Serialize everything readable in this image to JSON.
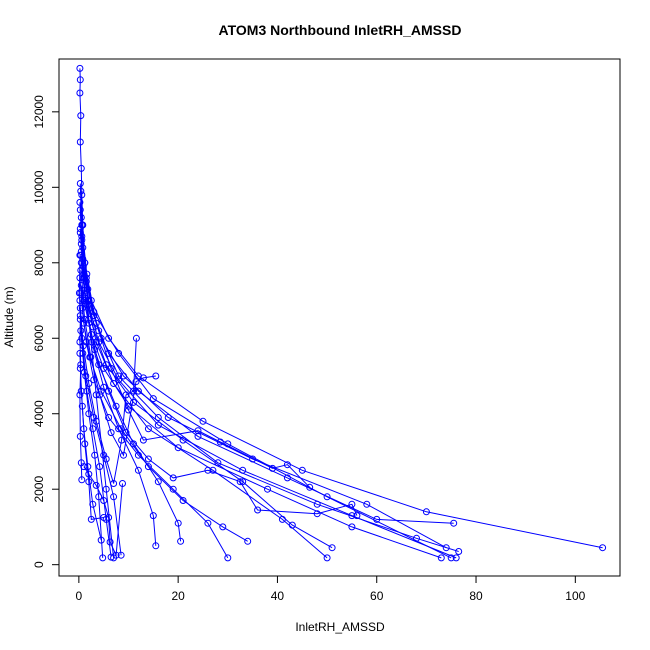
{
  "chart_data": {
    "type": "line",
    "title": "ATOM3 Northbound InletRH_AMSSD",
    "xlabel": "InletRH_AMSSD",
    "ylabel": "Altitude (m)",
    "xlim": [
      -4,
      109
    ],
    "ylim": [
      -300,
      13400
    ],
    "xticks": [
      0,
      20,
      40,
      60,
      80,
      100
    ],
    "yticks": [
      0,
      2000,
      4000,
      6000,
      8000,
      10000,
      12000
    ],
    "grid": false,
    "legend": "none",
    "color": "#0000ff",
    "marker": "open-circle",
    "series": [
      {
        "x": [
          0.2,
          0.3,
          0.2,
          0.4,
          0.3,
          0.5,
          0.6,
          0.8,
          1.2,
          2.0,
          3.5,
          5.5,
          7.0
        ],
        "y": [
          13150,
          12850,
          12500,
          11900,
          11200,
          10500,
          9800,
          9000,
          8000,
          6500,
          4500,
          2000,
          180
        ]
      },
      {
        "x": [
          0.3,
          0.5,
          0.8,
          1.5,
          3.0,
          8.0,
          15.0,
          30.0,
          50.0,
          75.0
        ],
        "y": [
          10100,
          9200,
          8400,
          7600,
          6700,
          5600,
          4400,
          3200,
          1800,
          180
        ]
      },
      {
        "x": [
          0.4,
          0.7,
          1.2,
          2.5,
          6.0,
          12.0,
          25.0,
          45.0,
          70.0,
          105.5
        ],
        "y": [
          9900,
          9000,
          8000,
          7000,
          6000,
          5000,
          3800,
          2500,
          1400,
          450
        ]
      },
      {
        "x": [
          0.2,
          0.6,
          1.0,
          2.0,
          4.0,
          8.0,
          16.0,
          33.0,
          55.0,
          76.0
        ],
        "y": [
          9600,
          8600,
          7700,
          6900,
          5900,
          4900,
          3700,
          2500,
          1300,
          180
        ]
      },
      {
        "x": [
          0.3,
          0.9,
          2.0,
          4.5,
          9.0,
          18.0,
          35.0,
          58.0,
          74.0
        ],
        "y": [
          8800,
          7900,
          7000,
          6000,
          5000,
          3900,
          2800,
          1600,
          450
        ]
      },
      {
        "x": [
          0.5,
          1.5,
          3.0,
          6.0,
          12.0,
          24.0,
          42.0,
          60.0,
          75.5
        ],
        "y": [
          8300,
          7500,
          6600,
          5600,
          4600,
          3400,
          2300,
          1200,
          1100
        ]
      },
      {
        "x": [
          0.4,
          1.0,
          2.5,
          5.0,
          10.0,
          20.0,
          38.0,
          55.0,
          73.0
        ],
        "y": [
          7800,
          7000,
          6100,
          5200,
          4200,
          3100,
          2000,
          1000,
          180
        ]
      },
      {
        "x": [
          0.6,
          1.8,
          4.0,
          8.0,
          16.0,
          28.0,
          48.0,
          68.0,
          76.5
        ],
        "y": [
          8700,
          7300,
          6200,
          5000,
          3900,
          2700,
          1600,
          700,
          350
        ]
      },
      {
        "x": [
          0.3,
          0.8,
          1.8,
          3.5,
          7.0,
          14.0,
          27.0,
          41.0,
          50.0
        ],
        "y": [
          9400,
          8100,
          7000,
          5900,
          4800,
          3600,
          2500,
          1200,
          180
        ]
      },
      {
        "x": [
          0.5,
          1.2,
          2.8,
          5.5,
          11.0,
          21.0,
          33.0,
          43.0,
          51.0
        ],
        "y": [
          8000,
          7200,
          6300,
          5300,
          4300,
          3300,
          2200,
          1050,
          450
        ]
      },
      {
        "x": [
          0.2,
          0.7,
          1.5,
          3.0,
          6.0,
          12.0,
          19.0,
          26.0,
          30.0
        ],
        "y": [
          7600,
          6800,
          5900,
          4900,
          3900,
          2900,
          2000,
          1100,
          180
        ]
      },
      {
        "x": [
          0.4,
          1.0,
          2.2,
          4.5,
          8.5,
          14.0,
          21.0,
          29.0,
          34.0
        ],
        "y": [
          7200,
          6400,
          5500,
          4600,
          3600,
          2600,
          1700,
          1000,
          620
        ]
      },
      {
        "x": [
          0.3,
          0.9,
          2.0,
          4.0,
          7.5,
          11.0,
          16.0,
          20.0,
          20.5
        ],
        "y": [
          8900,
          7600,
          6400,
          5300,
          4200,
          3200,
          2200,
          1100,
          620
        ]
      },
      {
        "x": [
          0.5,
          1.3,
          2.6,
          5.0,
          8.0,
          12.0,
          15.0,
          15.5
        ],
        "y": [
          8500,
          7100,
          5900,
          4700,
          3600,
          2500,
          1300,
          500
        ]
      },
      {
        "x": [
          0.2,
          0.6,
          1.4,
          3.0,
          5.0,
          7.0,
          8.5
        ],
        "y": [
          7000,
          6000,
          5000,
          3900,
          2900,
          1800,
          250
        ]
      },
      {
        "x": [
          0.3,
          0.8,
          1.6,
          2.8,
          4.2,
          5.5,
          6.5
        ],
        "y": [
          6600,
          5600,
          4600,
          3600,
          2600,
          1200,
          200
        ]
      },
      {
        "x": [
          0.4,
          1.1,
          2.0,
          3.2,
          4.0,
          4.8
        ],
        "y": [
          6200,
          5100,
          4000,
          2900,
          1800,
          180
        ]
      },
      {
        "x": [
          0.2,
          0.5,
          1.0,
          1.8,
          2.8,
          4.5
        ],
        "y": [
          5600,
          4600,
          3600,
          2600,
          1600,
          650
        ]
      },
      {
        "x": [
          0.3,
          0.7,
          1.2,
          2.0,
          2.5,
          5.0
        ],
        "y": [
          5200,
          4200,
          3200,
          2200,
          1200,
          1250
        ]
      },
      {
        "x": [
          0.6,
          1.6,
          3.5,
          6.5,
          10.0,
          13.0,
          24.0,
          28.5,
          39.0,
          42.0,
          46.5
        ],
        "y": [
          9000,
          7700,
          6400,
          5200,
          4100,
          3300,
          3550,
          3250,
          2550,
          2650,
          2050
        ]
      },
      {
        "x": [
          0.4,
          1.4,
          3.2,
          6.0,
          9.5,
          14.0,
          19.0,
          26.0,
          32.5,
          36.0,
          48.0,
          55.0,
          56.0
        ],
        "y": [
          8200,
          6900,
          5700,
          4600,
          3500,
          2800,
          2300,
          2500,
          2200,
          1450,
          1350,
          1600,
          1300
        ]
      },
      {
        "x": [
          0.5,
          1.2,
          2.4,
          4.2,
          6.5,
          9.0,
          11.5,
          13.0,
          15.5
        ],
        "y": [
          7400,
          6500,
          5500,
          4500,
          3500,
          2900,
          4850,
          4950,
          5000
        ]
      },
      {
        "x": [
          0.3,
          0.9,
          2.0,
          3.5,
          5.5,
          7.0,
          8.6,
          9.5,
          11.0,
          11.6
        ],
        "y": [
          6800,
          5800,
          4800,
          3800,
          2800,
          2150,
          3300,
          4500,
          4600,
          6000
        ]
      },
      {
        "x": [
          0.2,
          0.1,
          0.3,
          0.2,
          0.4,
          0.2,
          0.3,
          0.5,
          0.6
        ],
        "y": [
          8200,
          7200,
          6500,
          5900,
          5300,
          4500,
          3400,
          2700,
          2250
        ]
      },
      {
        "x": [
          1.0,
          2.0,
          3.5,
          5.0,
          6.0,
          6.3,
          7.5,
          8.8
        ],
        "y": [
          2600,
          2400,
          2100,
          1700,
          1250,
          600,
          250,
          2150
        ]
      }
    ]
  }
}
